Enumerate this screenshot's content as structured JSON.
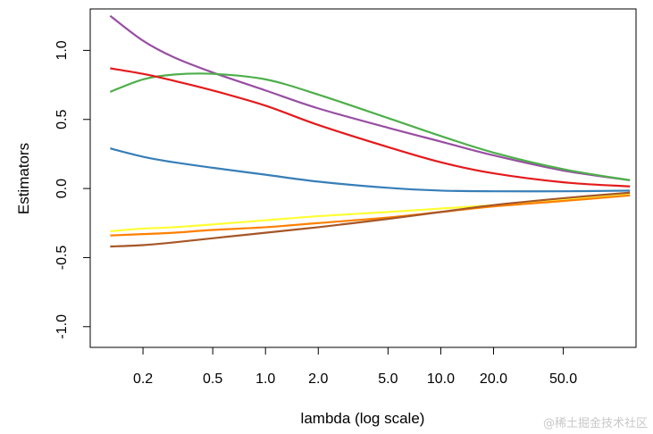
{
  "chart_data": {
    "type": "line",
    "title": "",
    "xlabel": "lambda (log scale)",
    "ylabel": "Estimators",
    "x_scale": "log",
    "xlim": [
      0.1,
      130
    ],
    "ylim": [
      -1.15,
      1.3
    ],
    "xticks": [
      0.2,
      0.5,
      1.0,
      2.0,
      5.0,
      10.0,
      20.0,
      50.0
    ],
    "xtick_labels": [
      "0.2",
      "0.5",
      "1.0",
      "2.0",
      "5.0",
      "10.0",
      "20.0",
      "50.0"
    ],
    "yticks": [
      -1.0,
      -0.5,
      0.0,
      0.5,
      1.0
    ],
    "ytick_labels": [
      "-1.0",
      "-0.5",
      "0.0",
      "0.5",
      "1.0"
    ],
    "grid": false,
    "legend": "none",
    "x": [
      0.13,
      0.2,
      0.3,
      0.5,
      1.0,
      2.0,
      5.0,
      10.0,
      20.0,
      50.0,
      120.0
    ],
    "series": [
      {
        "color": "#984EA3",
        "values": [
          1.25,
          1.07,
          0.95,
          0.84,
          0.71,
          0.58,
          0.44,
          0.34,
          0.24,
          0.13,
          0.06
        ]
      },
      {
        "color": "#4DAF4A",
        "values": [
          0.7,
          0.79,
          0.825,
          0.83,
          0.79,
          0.68,
          0.51,
          0.38,
          0.26,
          0.14,
          0.06
        ]
      },
      {
        "color": "#E41A1C",
        "values": [
          0.87,
          0.83,
          0.78,
          0.71,
          0.6,
          0.46,
          0.3,
          0.19,
          0.11,
          0.045,
          0.015
        ]
      },
      {
        "color": "#377EB8",
        "values": [
          0.29,
          0.23,
          0.19,
          0.15,
          0.1,
          0.05,
          0.005,
          -0.015,
          -0.02,
          -0.02,
          -0.015
        ]
      },
      {
        "color": "#FFFF33",
        "values": [
          -0.31,
          -0.29,
          -0.28,
          -0.26,
          -0.23,
          -0.2,
          -0.17,
          -0.145,
          -0.12,
          -0.08,
          -0.04
        ]
      },
      {
        "color": "#FF7F00",
        "values": [
          -0.34,
          -0.33,
          -0.32,
          -0.3,
          -0.28,
          -0.25,
          -0.21,
          -0.17,
          -0.13,
          -0.09,
          -0.05
        ]
      },
      {
        "color": "#A65628",
        "values": [
          -0.42,
          -0.41,
          -0.39,
          -0.36,
          -0.32,
          -0.28,
          -0.22,
          -0.17,
          -0.12,
          -0.07,
          -0.03
        ]
      }
    ]
  },
  "watermark": "@稀土掘金技术社区"
}
